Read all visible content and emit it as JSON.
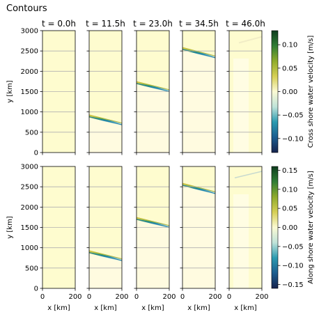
{
  "figure": {
    "title": "Contours"
  },
  "chart_data": {
    "type": "heatmap",
    "grid": true,
    "xlabel": "x [km]",
    "ylabel": "y [km]",
    "xlim": [
      0,
      200
    ],
    "ylim": [
      0,
      3000
    ],
    "xticks": [
      0,
      200
    ],
    "yticks": [
      0,
      500,
      1000,
      1500,
      2000,
      2500,
      3000
    ],
    "columns": [
      {
        "title": "t = 0.0h",
        "t_hours": 0.0,
        "front_y_at_x0": null,
        "front_y_at_x200": null
      },
      {
        "title": "t = 11.5h",
        "t_hours": 11.5,
        "front_y_at_x0": 900,
        "front_y_at_x200": 700
      },
      {
        "title": "t = 23.0h",
        "t_hours": 23.0,
        "front_y_at_x0": 1720,
        "front_y_at_x200": 1520
      },
      {
        "title": "t = 34.5h",
        "t_hours": 34.5,
        "front_y_at_x0": 2560,
        "front_y_at_x200": 2350
      },
      {
        "title": "t = 46.0h",
        "t_hours": 46.0,
        "front_y_at_x0": null,
        "front_y_at_x200": null
      }
    ],
    "rows": [
      {
        "name": "cross_shore",
        "colorbar_label": "Cross shore water velocity [m/s]",
        "colorbar_ticks": [
          0.1,
          0.05,
          0.0,
          -0.05,
          -0.1
        ],
        "colorbar_tick_labels": [
          "0.10",
          "0.05",
          "0.00",
          "−0.05",
          "−0.10"
        ],
        "vlim": [
          -0.13,
          0.13
        ]
      },
      {
        "name": "along_shore",
        "colorbar_label": "Along shore water velocity [m/s]",
        "colorbar_ticks": [
          0.15,
          0.1,
          0.05,
          0.0,
          -0.05,
          -0.1,
          -0.15
        ],
        "colorbar_tick_labels": [
          "0.15",
          "0.10",
          "0.05",
          "0.00",
          "−0.05",
          "−0.10",
          "−0.15"
        ],
        "vlim": [
          -0.16,
          0.16
        ]
      }
    ],
    "colormap": [
      "#16234d",
      "#1c5d8f",
      "#2b9ab0",
      "#bfe3d9",
      "#fbfad3",
      "#d6cf55",
      "#8fab2c",
      "#2f7d34",
      "#0e3d1f"
    ],
    "background_color": "#fefccf"
  }
}
